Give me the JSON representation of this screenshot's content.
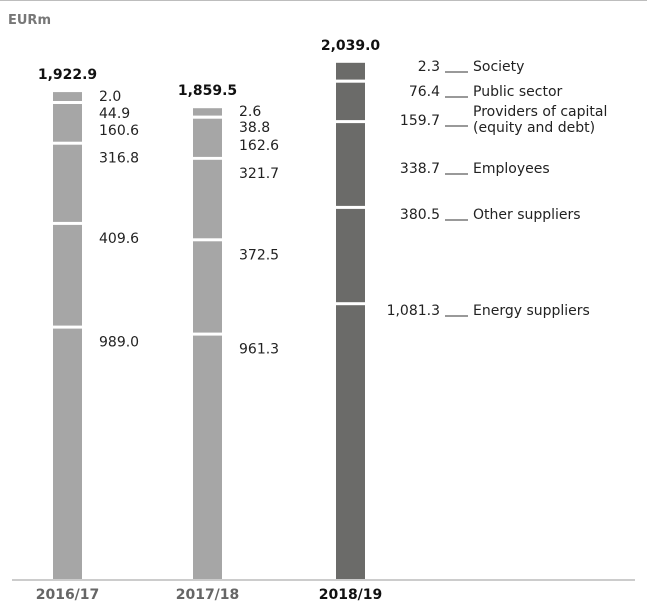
{
  "unit_label": "EURm",
  "chart_data": {
    "type": "bar",
    "stacked": true,
    "unit": "EURm",
    "categories": [
      "2016/17",
      "2017/18",
      "2018/19"
    ],
    "totals": [
      "1,922.9",
      "1,859.5",
      "2,039.0"
    ],
    "series": [
      {
        "name": "Energy suppliers",
        "values": [
          989.0,
          961.3,
          1081.3
        ],
        "labels": [
          "989.0",
          "961.3",
          "1,081.3"
        ]
      },
      {
        "name": "Other suppliers",
        "values": [
          409.6,
          372.5,
          380.5
        ],
        "labels": [
          "409.6",
          "372.5",
          "380.5"
        ]
      },
      {
        "name": "Employees",
        "values": [
          316.8,
          321.7,
          338.7
        ],
        "labels": [
          "316.8",
          "321.7",
          "338.7"
        ]
      },
      {
        "name": "Providers of capital (equity and debt)",
        "legend_lines": [
          "Providers of capital",
          "(equity and debt)"
        ],
        "values": [
          160.6,
          162.6,
          159.7
        ],
        "labels": [
          "160.6",
          "162.6",
          "159.7"
        ]
      },
      {
        "name": "Public sector",
        "values": [
          44.9,
          38.8,
          76.4
        ],
        "labels": [
          "44.9",
          "38.8",
          "76.4"
        ]
      },
      {
        "name": "Society",
        "values": [
          2.0,
          2.6,
          2.3
        ],
        "labels": [
          "2.0",
          "2.6",
          "2.3"
        ]
      }
    ],
    "colors": {
      "previous_years": "#a6a6a6",
      "current_year": "#6b6b69",
      "axis": "#999999"
    },
    "ylim": [
      0,
      2100
    ],
    "grid": false,
    "legend": "right"
  }
}
